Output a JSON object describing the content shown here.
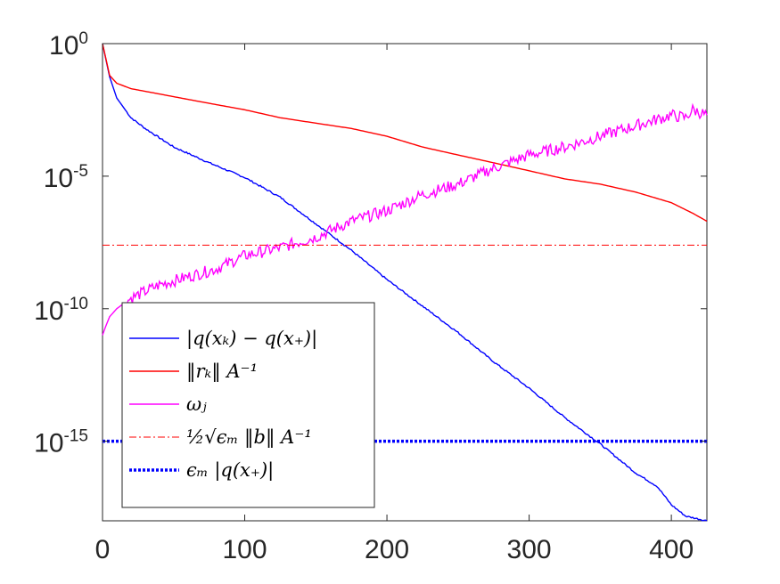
{
  "chart_data": {
    "type": "line",
    "title": "",
    "xlabel": "",
    "ylabel": "",
    "yscale": "log",
    "xlim": [
      0,
      425
    ],
    "ylim": [
      1e-18,
      1
    ],
    "x_ticks": [
      0,
      100,
      200,
      300,
      400
    ],
    "x_tick_labels": [
      "0",
      "100",
      "200",
      "300",
      "400"
    ],
    "y_ticks": [
      1,
      1e-05,
      1e-10,
      1e-15
    ],
    "y_tick_labels": [
      {
        "base": "10",
        "exp": "0"
      },
      {
        "base": "10",
        "exp": "-5"
      },
      {
        "base": "10",
        "exp": "-10"
      },
      {
        "base": "10",
        "exp": "-15"
      }
    ],
    "grid": false,
    "legend_position": "bottom-left",
    "series": [
      {
        "name": "|q(x_k) - q(x_*)|",
        "legend_label": "|q(xₖ) − q(x₊)|",
        "color": "#0000ff",
        "style": "solid",
        "points": [
          [
            0,
            1
          ],
          [
            5,
            0.056
          ],
          [
            10,
            0.0089
          ],
          [
            20,
            0.0016
          ],
          [
            30,
            0.00063
          ],
          [
            40,
            0.00028
          ],
          [
            50,
            0.000126
          ],
          [
            75,
            3.2e-05
          ],
          [
            100,
            8.9e-06
          ],
          [
            125,
            1.6e-06
          ],
          [
            150,
            1.6e-07
          ],
          [
            175,
            1.6e-08
          ],
          [
            200,
            1.26e-09
          ],
          [
            225,
            1.26e-10
          ],
          [
            250,
            1.26e-11
          ],
          [
            275,
            1e-12
          ],
          [
            300,
            1e-13
          ],
          [
            325,
            7.9e-15
          ],
          [
            350,
            7.9e-16
          ],
          [
            375,
            6.3e-17
          ],
          [
            390,
            2e-17
          ],
          [
            400,
            4e-18
          ],
          [
            410,
            1.5e-18
          ],
          [
            425,
            1e-18
          ]
        ]
      },
      {
        "name": "||r_k||_{A^-1}",
        "legend_label": "‖rₖ‖ A⁻¹",
        "color": "#ff0000",
        "style": "solid",
        "points": [
          [
            0,
            1
          ],
          [
            5,
            0.063
          ],
          [
            10,
            0.032
          ],
          [
            20,
            0.02
          ],
          [
            40,
            0.0126
          ],
          [
            60,
            0.0079
          ],
          [
            80,
            0.005
          ],
          [
            100,
            0.0032
          ],
          [
            125,
            0.0016
          ],
          [
            150,
            0.001
          ],
          [
            175,
            0.00063
          ],
          [
            200,
            0.00032
          ],
          [
            225,
            0.000126
          ],
          [
            250,
            6.3e-05
          ],
          [
            275,
            3.2e-05
          ],
          [
            300,
            1.6e-05
          ],
          [
            325,
            7.9e-06
          ],
          [
            350,
            5e-06
          ],
          [
            375,
            2.5e-06
          ],
          [
            400,
            1e-06
          ],
          [
            415,
            4e-07
          ],
          [
            425,
            2e-07
          ]
        ]
      },
      {
        "name": "omega_j",
        "legend_label": "ωⱼ",
        "color": "#ff00ff",
        "style": "solid",
        "points": [
          [
            0,
            1e-11
          ],
          [
            2,
            2e-11
          ],
          [
            5,
            5e-11
          ],
          [
            10,
            1e-10
          ],
          [
            20,
            2.5e-10
          ],
          [
            40,
            7.9e-10
          ],
          [
            60,
            1.6e-09
          ],
          [
            80,
            3.2e-09
          ],
          [
            100,
            1e-08
          ],
          [
            125,
            2e-08
          ],
          [
            150,
            5e-08
          ],
          [
            175,
            2e-07
          ],
          [
            200,
            5e-07
          ],
          [
            225,
            2e-06
          ],
          [
            250,
            5e-06
          ],
          [
            275,
            2e-05
          ],
          [
            300,
            6.3e-05
          ],
          [
            325,
            0.000126
          ],
          [
            350,
            0.00032
          ],
          [
            375,
            0.0008
          ],
          [
            400,
            0.002
          ],
          [
            410,
            0.0016
          ],
          [
            415,
            0.0032
          ],
          [
            425,
            0.002
          ]
        ]
      },
      {
        "name": "1/2 sqrt(eps_M) ||b||_{A^-1}",
        "legend_label": "½√ϵₘ ‖b‖ A⁻¹",
        "color": "#ff0000",
        "style": "dashdot",
        "points": [
          [
            0,
            2.5e-08
          ],
          [
            425,
            2.5e-08
          ]
        ]
      },
      {
        "name": "eps_M |q(x_*)|",
        "legend_label": "ϵₘ |q(x₊)|",
        "color": "#0000ff",
        "style": "dotted",
        "points": [
          [
            0,
            1e-15
          ],
          [
            425,
            1e-15
          ]
        ]
      }
    ]
  }
}
